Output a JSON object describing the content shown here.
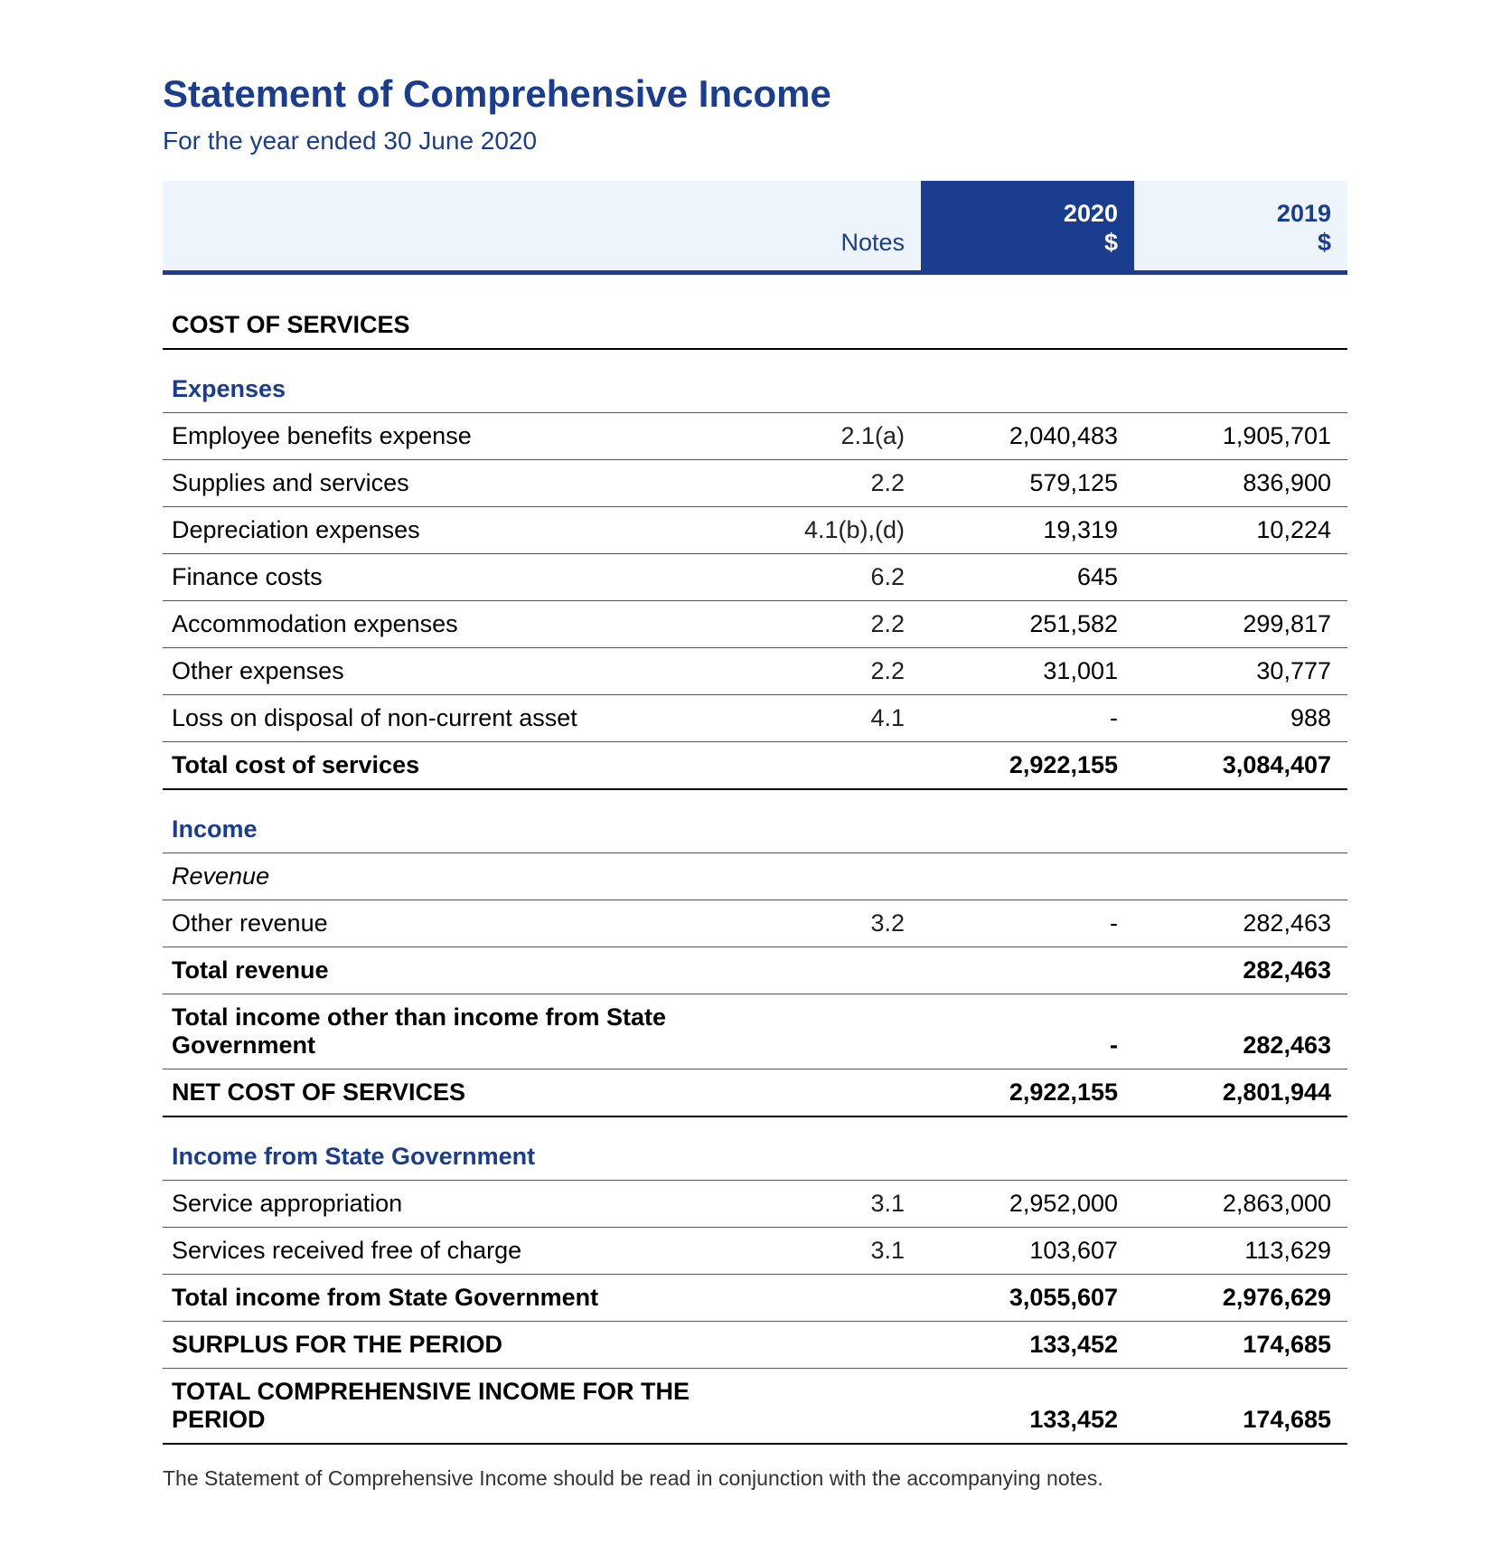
{
  "title": "Statement of Comprehensive Income",
  "subtitle": "For the year ended 30 June 2020",
  "colors": {
    "brand": "#1a3d8f",
    "header_bg": "#eef4fb",
    "rule": "#555555",
    "thick_rule": "#000000",
    "text": "#000000",
    "highlight_bg": "#1a3d8f",
    "highlight_text": "#ffffff"
  },
  "header": {
    "notes_label": "Notes",
    "year1": "2020",
    "year2": "2019",
    "currency": "$"
  },
  "rows": [
    {
      "type": "section",
      "label": "COST OF SERVICES"
    },
    {
      "type": "subhead",
      "label": "Expenses"
    },
    {
      "type": "line",
      "label": "Employee benefits expense",
      "note": "2.1(a)",
      "y1": "2,040,483",
      "y2": "1,905,701"
    },
    {
      "type": "line",
      "label": "Supplies and services",
      "note": "2.2",
      "y1": "579,125",
      "y2": "836,900"
    },
    {
      "type": "line",
      "label": "Depreciation expenses",
      "note": "4.1(b),(d)",
      "y1": "19,319",
      "y2": "10,224"
    },
    {
      "type": "line",
      "label": "Finance costs",
      "note": "6.2",
      "y1": "645",
      "y2": ""
    },
    {
      "type": "line",
      "label": "Accommodation expenses",
      "note": "2.2",
      "y1": "251,582",
      "y2": "299,817"
    },
    {
      "type": "line",
      "label": "Other expenses",
      "note": "2.2",
      "y1": "31,001",
      "y2": "30,777"
    },
    {
      "type": "line",
      "label": "Loss on disposal of non-current asset",
      "note": "4.1",
      "y1": "-",
      "y2": "988"
    },
    {
      "type": "total",
      "label": "Total cost of services",
      "note": "",
      "y1": "2,922,155",
      "y2": "3,084,407",
      "thick": true
    },
    {
      "type": "subhead",
      "label": "Income"
    },
    {
      "type": "italic",
      "label": "Revenue"
    },
    {
      "type": "line",
      "label": "Other revenue",
      "note": "3.2",
      "y1": "-",
      "y2": "282,463"
    },
    {
      "type": "total",
      "label": "Total revenue",
      "note": "",
      "y1": "",
      "y2": "282,463"
    },
    {
      "type": "total",
      "label": "Total income other than income from State Government",
      "note": "",
      "y1": "-",
      "y2": "282,463"
    },
    {
      "type": "total",
      "label": "NET COST OF SERVICES",
      "note": "",
      "y1": "2,922,155",
      "y2": "2,801,944",
      "thick": true
    },
    {
      "type": "subhead",
      "label": "Income from State Government"
    },
    {
      "type": "line",
      "label": "Service appropriation",
      "note": "3.1",
      "y1": "2,952,000",
      "y2": "2,863,000"
    },
    {
      "type": "line",
      "label": "Services received free of charge",
      "note": "3.1",
      "y1": "103,607",
      "y2": "113,629"
    },
    {
      "type": "total",
      "label": "Total income from State Government",
      "note": "",
      "y1": "3,055,607",
      "y2": "2,976,629"
    },
    {
      "type": "total",
      "label": "SURPLUS FOR THE PERIOD",
      "note": "",
      "y1": "133,452",
      "y2": "174,685"
    },
    {
      "type": "total",
      "label": "TOTAL COMPREHENSIVE INCOME FOR THE PERIOD",
      "note": "",
      "y1": "133,452",
      "y2": "174,685",
      "thick": true
    }
  ],
  "footnote": "The Statement of Comprehensive Income should be read in conjunction with the accompanying notes."
}
